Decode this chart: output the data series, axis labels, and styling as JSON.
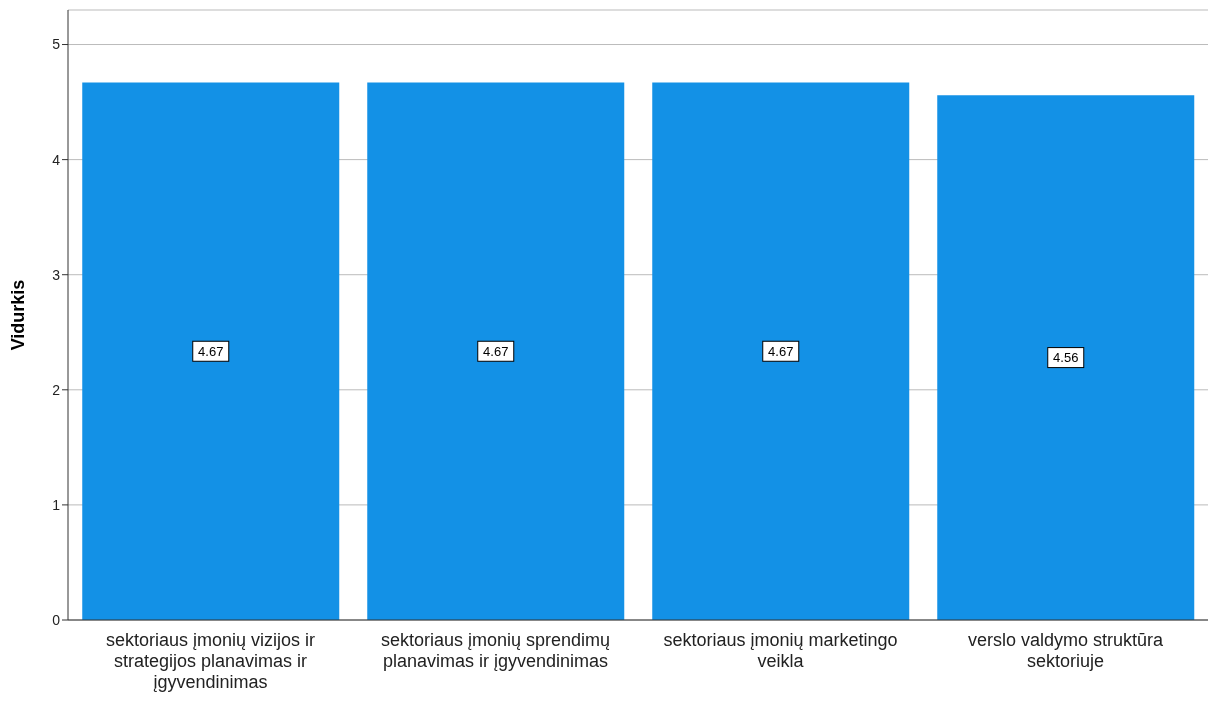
{
  "chart_data": {
    "type": "bar",
    "ylabel": "Vidurkis",
    "categories": [
      "sektoriaus įmonių vizijos ir strategijos planavimas ir įgyvendinimas",
      "sektoriaus įmonių sprendimų planavimas ir įgyvendinimas",
      "sektoriaus įmonių marketingo veikla",
      "verslo valdymo struktūra sektoriuje"
    ],
    "values": [
      4.67,
      4.67,
      4.67,
      4.56
    ],
    "color": "#1391e6",
    "ylim": [
      0,
      5.3
    ],
    "yticks": [
      0,
      1,
      2,
      3,
      4,
      5
    ],
    "grid": "y",
    "data_labels": true,
    "legend": false
  }
}
